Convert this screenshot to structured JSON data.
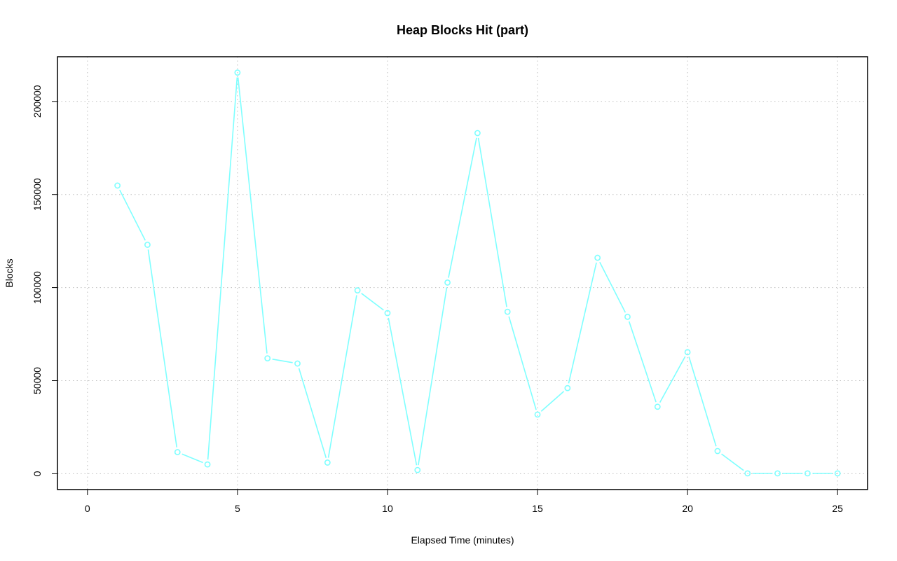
{
  "chart_data": {
    "type": "line",
    "title": "Heap Blocks Hit (part)",
    "xlabel": "Elapsed Time (minutes)",
    "ylabel": "Blocks",
    "xlim": [
      -1.0,
      26.0
    ],
    "ylim": [
      -8500,
      224000
    ],
    "xticks": [
      0,
      5,
      10,
      15,
      20,
      25
    ],
    "yticks": [
      0,
      50000,
      100000,
      150000,
      200000
    ],
    "grid": true,
    "series_color": "#7fffff",
    "x": [
      1,
      2,
      3,
      4,
      5,
      6,
      7,
      8,
      9,
      10,
      11,
      12,
      13,
      14,
      15,
      16,
      17,
      18,
      19,
      20,
      21,
      22,
      23,
      24,
      25
    ],
    "values": [
      154800,
      123000,
      11600,
      5000,
      215500,
      62000,
      59200,
      6000,
      98500,
      86300,
      2000,
      102700,
      183000,
      87000,
      31800,
      46000,
      116000,
      84300,
      36000,
      65300,
      12200,
      200,
      200,
      200,
      200
    ]
  }
}
